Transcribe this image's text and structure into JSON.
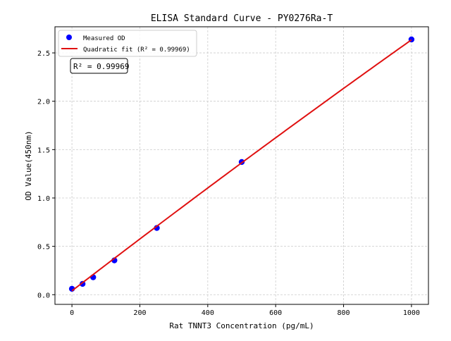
{
  "chart_data": {
    "type": "scatter",
    "title": "ELISA Standard Curve - PY0276Ra-T",
    "xlabel": "Rat TNNT3 Concentration (pg/mL)",
    "ylabel": "OD Value(450nm)",
    "xlim": [
      -50,
      1050
    ],
    "ylim": [
      -0.1,
      2.77
    ],
    "xticks": [
      0,
      200,
      400,
      600,
      800,
      1000
    ],
    "yticks": [
      0.0,
      0.5,
      1.0,
      1.5,
      2.0,
      2.5
    ],
    "xtick_labels": [
      "0",
      "200",
      "400",
      "600",
      "800",
      "1000"
    ],
    "ytick_labels": [
      "0.0",
      "0.5",
      "1.0",
      "1.5",
      "2.0",
      "2.5"
    ],
    "grid": true,
    "legend_position": "top-left",
    "series": [
      {
        "name": "Measured OD",
        "kind": "scatter",
        "color": "#0000ff",
        "x": [
          0,
          31.25,
          62.5,
          125,
          250,
          500,
          1000
        ],
        "y": [
          0.061,
          0.112,
          0.18,
          0.355,
          0.69,
          1.372,
          2.639
        ]
      },
      {
        "name": "Quadratic fit (R² = 0.99969)",
        "kind": "line",
        "color": "#e01010",
        "coefficients": {
          "a": 0.04,
          "b": 0.0027,
          "c": -1.05e-07
        },
        "x_range": [
          0,
          1000
        ]
      }
    ],
    "annotation": "R² = 0.99969"
  }
}
